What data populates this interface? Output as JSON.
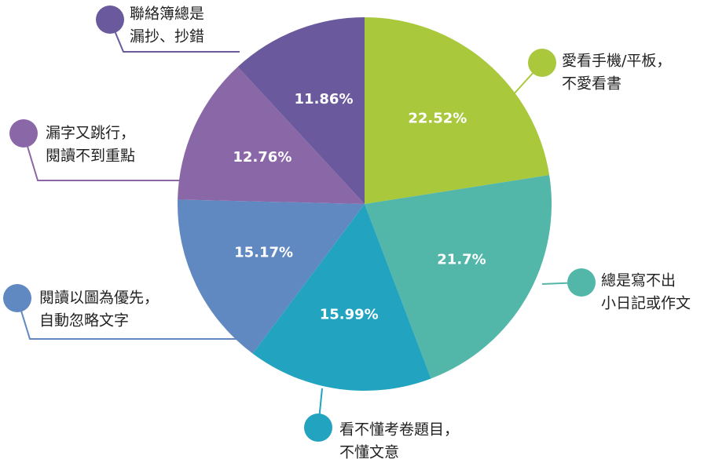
{
  "chart_data": {
    "type": "pie",
    "categories": [
      [
        "愛看手機/平板，",
        "不愛看書"
      ],
      [
        "總是寫不出",
        "小日記或作文"
      ],
      [
        "看不懂考卷題目，",
        "不懂文意"
      ],
      [
        "閱讀以圖為優先，",
        "自動忽略文字"
      ],
      [
        "漏字又跳行，",
        "閱讀不到重點"
      ],
      [
        "聯絡簿總是",
        "漏抄、抄錯"
      ]
    ],
    "values": [
      22.52,
      21.7,
      15.99,
      15.17,
      12.76,
      11.86
    ],
    "value_labels": [
      "22.52%",
      "21.7%",
      "15.99%",
      "15.17%",
      "12.76%",
      "11.86%"
    ],
    "colors": [
      "#a9c83c",
      "#52b6a9",
      "#22a3bf",
      "#6189c1",
      "#8a67a6",
      "#6a5a9d"
    ]
  }
}
